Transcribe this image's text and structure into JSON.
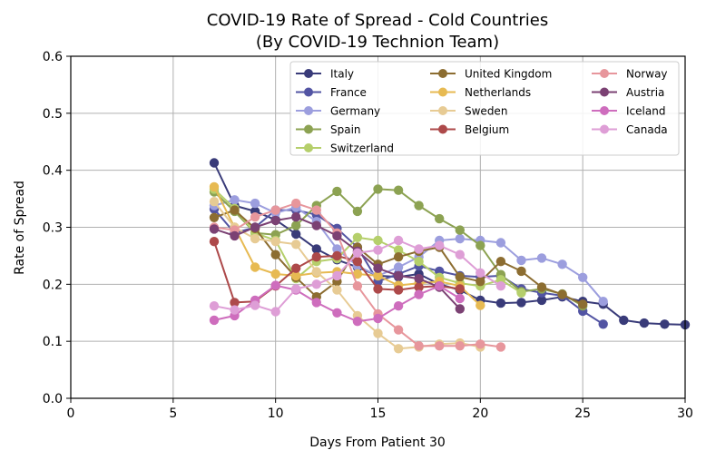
{
  "chart_data": {
    "type": "line",
    "title": "COVID-19 Rate of Spread - Cold Countries",
    "subtitle": "(By COVID-19 Technion Team)",
    "xlabel": "Days From Patient 30",
    "ylabel": "Rate of Spread",
    "xlim": [
      0,
      30
    ],
    "ylim": [
      0,
      0.6
    ],
    "xticks": [
      "0",
      "5",
      "10",
      "15",
      "20",
      "25",
      "30"
    ],
    "yticks": [
      "0.0",
      "0.1",
      "0.2",
      "0.3",
      "0.4",
      "0.5",
      "0.6"
    ],
    "grid": true,
    "legend_position": "top-right",
    "series": [
      {
        "name": "Italy",
        "color": "#393b79",
        "x": [
          7,
          8,
          9,
          10,
          11,
          12,
          13,
          14,
          15,
          16,
          17,
          18,
          19,
          20,
          21,
          22,
          23,
          24,
          25,
          26,
          27,
          28,
          29,
          30
        ],
        "y": [
          0.413,
          0.338,
          0.328,
          0.313,
          0.288,
          0.262,
          0.243,
          0.23,
          0.215,
          0.213,
          0.218,
          0.2,
          0.19,
          0.172,
          0.167,
          0.168,
          0.172,
          0.178,
          0.17,
          0.165,
          0.137,
          0.132,
          0.13,
          0.129
        ]
      },
      {
        "name": "France",
        "color": "#5254a3",
        "x": [
          7,
          8,
          9,
          10,
          11,
          12,
          13,
          14,
          15,
          16,
          17,
          18,
          19,
          20,
          21,
          22,
          23,
          24,
          25,
          26
        ],
        "y": [
          0.332,
          0.29,
          0.3,
          0.33,
          0.33,
          0.322,
          0.298,
          0.265,
          0.205,
          0.218,
          0.232,
          0.223,
          0.215,
          0.213,
          0.215,
          0.192,
          0.185,
          0.18,
          0.153,
          0.13
        ]
      },
      {
        "name": "Germany",
        "color": "#9c9ede",
        "x": [
          7,
          8,
          9,
          10,
          11,
          12,
          13,
          14,
          15,
          16,
          17,
          18,
          19,
          20,
          21,
          22,
          23,
          24,
          25,
          26
        ],
        "y": [
          0.338,
          0.348,
          0.342,
          0.325,
          0.335,
          0.31,
          0.262,
          0.232,
          0.215,
          0.23,
          0.248,
          0.277,
          0.28,
          0.277,
          0.273,
          0.242,
          0.246,
          0.235,
          0.212,
          0.17
        ]
      },
      {
        "name": "Spain",
        "color": "#8ca252",
        "x": [
          7,
          8,
          9,
          10,
          11,
          12,
          13,
          14,
          15,
          16,
          17,
          18,
          19,
          20,
          21,
          22,
          23,
          24,
          25
        ],
        "y": [
          0.362,
          0.328,
          0.29,
          0.287,
          0.303,
          0.338,
          0.363,
          0.328,
          0.367,
          0.365,
          0.338,
          0.315,
          0.295,
          0.268,
          0.217,
          0.187,
          0.192,
          0.183,
          0.162
        ]
      },
      {
        "name": "Switzerland",
        "color": "#b5cf6b",
        "x": [
          7,
          8,
          9,
          10,
          11,
          12,
          13,
          14,
          15,
          16,
          17,
          18,
          19,
          20,
          21,
          22
        ],
        "y": [
          0.367,
          0.333,
          0.29,
          0.277,
          0.21,
          0.24,
          0.245,
          0.282,
          0.277,
          0.26,
          0.24,
          0.212,
          0.202,
          0.197,
          0.208,
          0.185
        ]
      },
      {
        "name": "United Kingdom",
        "color": "#8c6d31",
        "x": [
          7,
          8,
          9,
          10,
          11,
          12,
          13,
          14,
          15,
          16,
          17,
          18,
          19,
          20,
          21,
          22,
          23,
          24,
          25
        ],
        "y": [
          0.317,
          0.33,
          0.298,
          0.252,
          0.212,
          0.178,
          0.205,
          0.265,
          0.235,
          0.248,
          0.258,
          0.265,
          0.213,
          0.205,
          0.24,
          0.223,
          0.195,
          0.182,
          0.165
        ]
      },
      {
        "name": "Netherlands",
        "color": "#e7ba52",
        "x": [
          7,
          8,
          9,
          10,
          11,
          12,
          13,
          14,
          15,
          16,
          17,
          18,
          19,
          20
        ],
        "y": [
          0.371,
          0.3,
          0.23,
          0.218,
          0.215,
          0.22,
          0.222,
          0.218,
          0.215,
          0.198,
          0.202,
          0.205,
          0.197,
          0.163
        ]
      },
      {
        "name": "Sweden",
        "color": "#e7cb94",
        "x": [
          7,
          8,
          9,
          10,
          11,
          12,
          13,
          14,
          15,
          16,
          17,
          18,
          19,
          20
        ],
        "y": [
          0.345,
          0.3,
          0.28,
          0.275,
          0.27,
          0.222,
          0.19,
          0.145,
          0.114,
          0.087,
          0.09,
          0.095,
          0.097,
          0.09
        ]
      },
      {
        "name": "Belgium",
        "color": "#ad494a",
        "x": [
          7,
          8,
          9,
          10,
          11,
          12,
          13,
          14,
          15,
          16,
          17,
          18,
          19
        ],
        "y": [
          0.275,
          0.168,
          0.17,
          0.197,
          0.228,
          0.248,
          0.25,
          0.24,
          0.192,
          0.19,
          0.195,
          0.197,
          0.192
        ]
      },
      {
        "name": "Norway",
        "color": "#e7969c",
        "x": [
          7,
          8,
          9,
          10,
          11,
          12,
          13,
          14,
          15,
          16,
          17,
          18,
          19,
          20,
          21
        ],
        "y": [
          0.3,
          0.295,
          0.318,
          0.33,
          0.342,
          0.33,
          0.29,
          0.197,
          0.148,
          0.12,
          0.092,
          0.092,
          0.092,
          0.095,
          0.09
        ]
      },
      {
        "name": "Austria",
        "color": "#7b4173",
        "x": [
          7,
          8,
          9,
          10,
          11,
          12,
          13,
          14,
          15,
          16,
          17,
          18,
          19
        ],
        "y": [
          0.297,
          0.285,
          0.3,
          0.312,
          0.318,
          0.303,
          0.285,
          0.258,
          0.228,
          0.215,
          0.21,
          0.195,
          0.157
        ]
      },
      {
        "name": "Iceland",
        "color": "#ce6dbd",
        "x": [
          7,
          8,
          9,
          10,
          11,
          12,
          13,
          14,
          15,
          16,
          17,
          18,
          19
        ],
        "y": [
          0.137,
          0.145,
          0.172,
          0.198,
          0.19,
          0.168,
          0.15,
          0.135,
          0.14,
          0.162,
          0.182,
          0.197,
          0.175
        ]
      },
      {
        "name": "Canada",
        "color": "#de9ed6",
        "x": [
          7,
          8,
          9,
          10,
          11,
          12,
          13,
          14,
          15,
          16,
          17,
          18,
          19,
          20,
          21
        ],
        "y": [
          0.162,
          0.155,
          0.163,
          0.152,
          0.192,
          0.2,
          0.215,
          0.255,
          0.26,
          0.277,
          0.262,
          0.268,
          0.252,
          0.22,
          0.197
        ]
      }
    ]
  }
}
